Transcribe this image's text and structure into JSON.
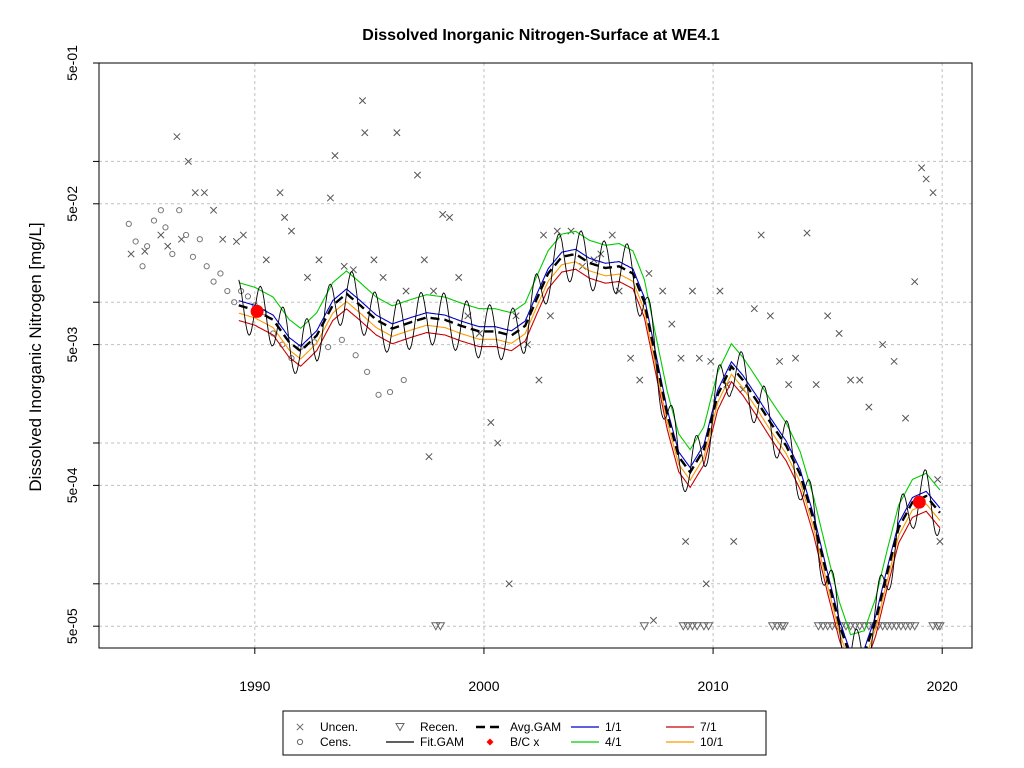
{
  "chart_data": {
    "type": "line",
    "title": "Dissolved Inorganic Nitrogen-Surface at WE4.1",
    "xlabel": "",
    "ylabel": "Dissolved Inorganic Nitrogen [mg/L]",
    "x_tick_labels": [
      "1990",
      "2000",
      "2010",
      "2020"
    ],
    "x_ticks": [
      1990,
      2000,
      2010,
      2020
    ],
    "y_tick_labels": [
      "5e-05",
      "5e-04",
      "5e-03",
      "5e-02",
      "5e-01"
    ],
    "y_ticks": [
      5e-05,
      0.0005,
      0.005,
      0.05,
      0.5
    ],
    "xlim": [
      1983.2,
      2021.3
    ],
    "ylim": [
      3.5e-05,
      0.5
    ],
    "y_scale": "log",
    "grid": true,
    "legend_placement": "bottom",
    "legend": [
      {
        "label": "Uncen.",
        "symbol": "x",
        "color": "#666666"
      },
      {
        "label": "Cens.",
        "symbol": "circle",
        "color": "#666666"
      },
      {
        "label": "Recen.",
        "symbol": "triangle-down",
        "color": "#666666"
      },
      {
        "label": "Fit.GAM",
        "symbol": "line",
        "color": "#000000"
      },
      {
        "label": "Avg.GAM",
        "symbol": "dashed-line",
        "color": "#000000"
      },
      {
        "label": "B/C x",
        "symbol": "dot",
        "color": "#ff0000"
      },
      {
        "label": "1/1",
        "symbol": "line",
        "color": "#0000cc"
      },
      {
        "label": "4/1",
        "symbol": "line",
        "color": "#00cc00"
      },
      {
        "label": "7/1",
        "symbol": "line",
        "color": "#cc0000"
      },
      {
        "label": "10/1",
        "symbol": "line",
        "color": "#ff9900"
      }
    ],
    "avg_gam": {
      "name": "Avg.GAM",
      "points": [
        [
          1989.3,
          0.0095
        ],
        [
          1990,
          0.0088
        ],
        [
          1990.8,
          0.0075
        ],
        [
          1991.5,
          0.0052
        ],
        [
          1992,
          0.0045
        ],
        [
          1992.7,
          0.0058
        ],
        [
          1993.4,
          0.0095
        ],
        [
          1994,
          0.0115
        ],
        [
          1994.6,
          0.0095
        ],
        [
          1995.3,
          0.0075
        ],
        [
          1996,
          0.0065
        ],
        [
          1996.8,
          0.0072
        ],
        [
          1997.5,
          0.0078
        ],
        [
          1998.3,
          0.0075
        ],
        [
          1999,
          0.0068
        ],
        [
          1999.8,
          0.0062
        ],
        [
          2000.5,
          0.0062
        ],
        [
          2001.2,
          0.0058
        ],
        [
          2001.8,
          0.0068
        ],
        [
          2002.3,
          0.0105
        ],
        [
          2002.8,
          0.016
        ],
        [
          2003.4,
          0.021
        ],
        [
          2004,
          0.022
        ],
        [
          2004.6,
          0.019
        ],
        [
          2005.3,
          0.0175
        ],
        [
          2005.9,
          0.018
        ],
        [
          2006.5,
          0.016
        ],
        [
          2007,
          0.01
        ],
        [
          2007.5,
          0.004
        ],
        [
          2008,
          0.0016
        ],
        [
          2008.5,
          0.0008
        ],
        [
          2009,
          0.00062
        ],
        [
          2009.6,
          0.0009
        ],
        [
          2010.2,
          0.0022
        ],
        [
          2010.8,
          0.0035
        ],
        [
          2011.3,
          0.0028
        ],
        [
          2011.9,
          0.002
        ],
        [
          2012.5,
          0.0014
        ],
        [
          2013.2,
          0.00095
        ],
        [
          2013.8,
          0.0006
        ],
        [
          2014.4,
          0.00028
        ],
        [
          2015,
          0.00011
        ],
        [
          2015.5,
          5.2e-05
        ],
        [
          2016,
          3e-05
        ],
        [
          2016.6,
          3.2e-05
        ],
        [
          2017.1,
          5.5e-05
        ],
        [
          2017.6,
          0.00012
        ],
        [
          2018.1,
          0.00025
        ],
        [
          2018.7,
          0.00038
        ],
        [
          2019.3,
          0.00042
        ],
        [
          2019.9,
          0.00032
        ]
      ]
    },
    "fit_gam": {
      "name": "Fit.GAM",
      "amplitude_factor": 1.55,
      "cycles_per_year": 1
    },
    "series": [
      {
        "name": "1/1",
        "factor": 1.08,
        "color": "#0000cc"
      },
      {
        "name": "4/1",
        "factor": 1.45,
        "color": "#00cc00"
      },
      {
        "name": "7/1",
        "factor": 0.78,
        "color": "#cc0000"
      },
      {
        "name": "10/1",
        "factor": 0.88,
        "color": "#ff9900"
      }
    ],
    "bc_x": [
      [
        1990.1,
        0.0086
      ],
      [
        2019,
        0.00038
      ]
    ],
    "uncensored": [
      [
        1984.6,
        0.022
      ],
      [
        1985.2,
        0.023
      ],
      [
        1985.9,
        0.03
      ],
      [
        1986.2,
        0.025
      ],
      [
        1986.6,
        0.15
      ],
      [
        1986.8,
        0.028
      ],
      [
        1987.1,
        0.1
      ],
      [
        1987.4,
        0.06
      ],
      [
        1987.8,
        0.06
      ],
      [
        1988.2,
        0.045
      ],
      [
        1988.6,
        0.028
      ],
      [
        1989.2,
        0.027
      ],
      [
        1989.5,
        0.03
      ],
      [
        1990.5,
        0.02
      ],
      [
        1991.1,
        0.06
      ],
      [
        1991.3,
        0.04
      ],
      [
        1991.6,
        0.032
      ],
      [
        1992.3,
        0.015
      ],
      [
        1992.8,
        0.02
      ],
      [
        1993.3,
        0.055
      ],
      [
        1993.5,
        0.11
      ],
      [
        1993.9,
        0.018
      ],
      [
        1994.3,
        0.017
      ],
      [
        1994.7,
        0.27
      ],
      [
        1994.8,
        0.16
      ],
      [
        1995.2,
        0.02
      ],
      [
        1995.6,
        0.015
      ],
      [
        1996.2,
        0.16
      ],
      [
        1996.6,
        0.012
      ],
      [
        1997.1,
        0.08
      ],
      [
        1997.4,
        0.02
      ],
      [
        1997.6,
        0.0008
      ],
      [
        1997.8,
        0.012
      ],
      [
        1998.2,
        0.042
      ],
      [
        1998.5,
        0.04
      ],
      [
        1998.9,
        0.015
      ],
      [
        1999.3,
        0.008
      ],
      [
        1999.8,
        0.006
      ],
      [
        2000.3,
        0.0014
      ],
      [
        2000.6,
        0.001
      ],
      [
        2001.1,
        0.0001
      ],
      [
        2001.4,
        0.008
      ],
      [
        2001.9,
        0.005
      ],
      [
        2002.4,
        0.0028
      ],
      [
        2002.6,
        0.03
      ],
      [
        2002.9,
        0.008
      ],
      [
        2003.2,
        0.032
      ],
      [
        2003.8,
        0.032
      ],
      [
        2004.3,
        0.018
      ],
      [
        2004.8,
        0.02
      ],
      [
        2005.1,
        0.022
      ],
      [
        2005.6,
        0.03
      ],
      [
        2005.9,
        0.012
      ],
      [
        2006.4,
        0.004
      ],
      [
        2006.8,
        0.0028
      ],
      [
        2007.2,
        0.016
      ],
      [
        2007.4,
        5.5e-05
      ],
      [
        2007.8,
        0.012
      ],
      [
        2008.2,
        0.007
      ],
      [
        2008.6,
        0.004
      ],
      [
        2008.8,
        0.0002
      ],
      [
        2009.1,
        0.012
      ],
      [
        2009.4,
        0.004
      ],
      [
        2009.7,
        0.0001
      ],
      [
        2009.9,
        0.0038
      ],
      [
        2010.3,
        0.012
      ],
      [
        2010.6,
        0.0026
      ],
      [
        2010.9,
        0.0002
      ],
      [
        2011.3,
        0.0024
      ],
      [
        2011.8,
        0.009
      ],
      [
        2012.1,
        0.03
      ],
      [
        2012.5,
        0.008
      ],
      [
        2012.9,
        0.0038
      ],
      [
        2013.3,
        0.0026
      ],
      [
        2013.6,
        0.004
      ],
      [
        2014.1,
        0.031
      ],
      [
        2014.5,
        0.0026
      ],
      [
        2015.0,
        0.008
      ],
      [
        2015.5,
        0.006
      ],
      [
        2016.0,
        0.0028
      ],
      [
        2016.4,
        0.0028
      ],
      [
        2016.8,
        0.0018
      ],
      [
        2017.4,
        0.005
      ],
      [
        2017.9,
        0.0038
      ],
      [
        2018.4,
        0.0015
      ],
      [
        2018.8,
        0.014
      ],
      [
        2019.1,
        0.09
      ],
      [
        2019.3,
        0.075
      ],
      [
        2019.6,
        0.06
      ],
      [
        2019.8,
        0.00055
      ],
      [
        2019.9,
        0.0002
      ]
    ],
    "censored": [
      [
        1984.5,
        0.036
      ],
      [
        1984.8,
        0.027
      ],
      [
        1985.1,
        0.018
      ],
      [
        1985.3,
        0.025
      ],
      [
        1985.6,
        0.038
      ],
      [
        1985.9,
        0.045
      ],
      [
        1986.1,
        0.034
      ],
      [
        1986.4,
        0.022
      ],
      [
        1986.7,
        0.045
      ],
      [
        1987.0,
        0.03
      ],
      [
        1987.3,
        0.021
      ],
      [
        1987.6,
        0.028
      ],
      [
        1987.9,
        0.018
      ],
      [
        1988.2,
        0.014
      ],
      [
        1988.5,
        0.016
      ],
      [
        1988.8,
        0.012
      ],
      [
        1989.1,
        0.01
      ],
      [
        1989.4,
        0.012
      ],
      [
        1989.7,
        0.011
      ],
      [
        1990.0,
        0.0095
      ],
      [
        1990.4,
        0.0085
      ],
      [
        1990.8,
        0.006
      ],
      [
        1991.2,
        0.005
      ],
      [
        1991.6,
        0.004
      ],
      [
        1992.0,
        0.0048
      ],
      [
        1992.6,
        0.0052
      ],
      [
        1993.2,
        0.0048
      ],
      [
        1993.8,
        0.0054
      ],
      [
        1994.4,
        0.0042
      ],
      [
        1994.9,
        0.0032
      ],
      [
        1995.4,
        0.0022
      ],
      [
        1995.9,
        0.0023
      ],
      [
        1996.5,
        0.0028
      ]
    ],
    "recensored": [
      [
        1997.9,
        5e-05
      ],
      [
        1998.1,
        5e-05
      ],
      [
        2007.0,
        5e-05
      ],
      [
        2008.7,
        5e-05
      ],
      [
        2008.9,
        5e-05
      ],
      [
        2009.1,
        5e-05
      ],
      [
        2009.3,
        5e-05
      ],
      [
        2009.6,
        5e-05
      ],
      [
        2009.8,
        5e-05
      ],
      [
        2012.6,
        5e-05
      ],
      [
        2012.8,
        5e-05
      ],
      [
        2013.0,
        5e-05
      ],
      [
        2013.1,
        5e-05
      ],
      [
        2014.6,
        5e-05
      ],
      [
        2014.8,
        5e-05
      ],
      [
        2015.0,
        5e-05
      ],
      [
        2015.2,
        5e-05
      ],
      [
        2015.4,
        5e-05
      ],
      [
        2015.6,
        5e-05
      ],
      [
        2015.8,
        5e-05
      ],
      [
        2016.0,
        5e-05
      ],
      [
        2016.2,
        5e-05
      ],
      [
        2016.4,
        5e-05
      ],
      [
        2016.6,
        5e-05
      ],
      [
        2016.8,
        5e-05
      ],
      [
        2017.0,
        5e-05
      ],
      [
        2017.2,
        5e-05
      ],
      [
        2017.4,
        5e-05
      ],
      [
        2017.6,
        5e-05
      ],
      [
        2017.8,
        5e-05
      ],
      [
        2018.0,
        5e-05
      ],
      [
        2018.2,
        5e-05
      ],
      [
        2018.4,
        5e-05
      ],
      [
        2018.6,
        5e-05
      ],
      [
        2018.8,
        5e-05
      ],
      [
        2019.6,
        5e-05
      ],
      [
        2019.8,
        5e-05
      ],
      [
        2019.9,
        5e-05
      ]
    ]
  }
}
